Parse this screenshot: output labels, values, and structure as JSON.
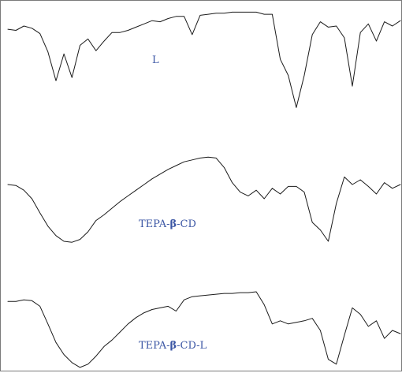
{
  "chart_data": {
    "type": "line",
    "title": "",
    "xlabel": "",
    "ylabel": "",
    "grid": false,
    "legend": "inline labels",
    "series_color": "#1a1a1a",
    "label_color": "#3b56a4",
    "x_samples": 50,
    "series": [
      {
        "name": "L",
        "label_parts": [
          "L"
        ],
        "values": [
          0.83,
          0.82,
          0.86,
          0.84,
          0.79,
          0.62,
          0.35,
          0.6,
          0.38,
          0.68,
          0.74,
          0.63,
          0.72,
          0.8,
          0.8,
          0.82,
          0.85,
          0.88,
          0.91,
          0.9,
          0.93,
          0.95,
          0.95,
          0.78,
          0.96,
          0.97,
          0.98,
          0.98,
          0.99,
          0.99,
          0.99,
          0.99,
          0.97,
          0.97,
          0.55,
          0.4,
          0.1,
          0.4,
          0.78,
          0.9,
          0.85,
          0.86,
          0.75,
          0.3,
          0.8,
          0.88,
          0.72,
          0.9,
          0.86,
          0.91
        ]
      },
      {
        "name": "TEPA-β-CD",
        "label_parts": [
          "TEPA-",
          "β",
          "-CD"
        ],
        "values": [
          0.7,
          0.69,
          0.64,
          0.55,
          0.4,
          0.26,
          0.16,
          0.1,
          0.09,
          0.12,
          0.2,
          0.32,
          0.38,
          0.45,
          0.52,
          0.58,
          0.64,
          0.7,
          0.76,
          0.81,
          0.86,
          0.9,
          0.94,
          0.96,
          0.98,
          0.99,
          0.98,
          0.88,
          0.72,
          0.62,
          0.58,
          0.64,
          0.55,
          0.66,
          0.6,
          0.68,
          0.68,
          0.62,
          0.3,
          0.22,
          0.1,
          0.5,
          0.78,
          0.7,
          0.75,
          0.68,
          0.6,
          0.72,
          0.66,
          0.7
        ]
      },
      {
        "name": "TEPA-β-CD-L",
        "label_parts": [
          "TEPA-",
          "β",
          "-CD-L"
        ],
        "values": [
          0.86,
          0.86,
          0.88,
          0.87,
          0.8,
          0.58,
          0.35,
          0.2,
          0.1,
          0.04,
          0.08,
          0.18,
          0.3,
          0.38,
          0.48,
          0.58,
          0.66,
          0.72,
          0.76,
          0.78,
          0.8,
          0.74,
          0.88,
          0.92,
          0.93,
          0.94,
          0.95,
          0.96,
          0.96,
          0.97,
          0.97,
          0.98,
          0.82,
          0.58,
          0.62,
          0.58,
          0.6,
          0.62,
          0.65,
          0.5,
          0.14,
          0.08,
          0.44,
          0.78,
          0.7,
          0.55,
          0.62,
          0.4,
          0.5,
          0.46
        ]
      }
    ]
  }
}
